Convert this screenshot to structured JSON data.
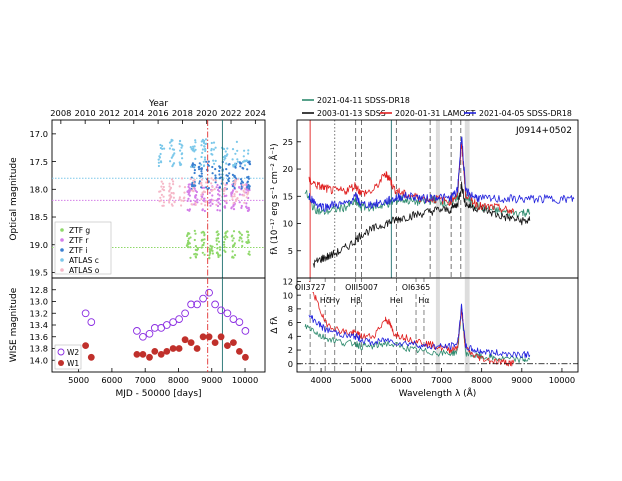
{
  "chart_data": [
    {
      "panel": "left-top",
      "type": "scatter",
      "top_axis_label": "Year",
      "top_ticks": [
        "2008",
        "2010",
        "2012",
        "2014",
        "2016",
        "2018",
        "2020",
        "2022",
        "2024"
      ],
      "top_tick_values": [
        2008,
        2010,
        2012,
        2014,
        2016,
        2018,
        2020,
        2022,
        2024
      ],
      "xlabel": "",
      "ylabel": "Optical magnitude",
      "xlim": [
        4200,
        10600
      ],
      "ylim": [
        19.6,
        16.75
      ],
      "y_inverted": true,
      "yticks": [
        "17.0",
        "17.5",
        "18.0",
        "18.5",
        "19.0",
        "19.5"
      ],
      "ytick_values": [
        17.0,
        17.5,
        18.0,
        18.5,
        19.0,
        19.5
      ],
      "legend": [
        "ZTF g",
        "ZTF r",
        "ZTF i",
        "ATLAS c",
        "ATLAS o"
      ],
      "legend_placement": "lower-left",
      "series": [
        {
          "name": "ZTF g",
          "color": "#8fd86a",
          "x_range": [
            8250,
            10250
          ],
          "mean_mag": 19.0,
          "reference_mag": 19.05
        },
        {
          "name": "ZTF r",
          "color": "#d47ee8",
          "x_range": [
            8250,
            10250
          ],
          "mean_mag": 18.15,
          "reference_mag": 18.2
        },
        {
          "name": "ZTF i",
          "color": "#3a7fd0",
          "x_range": [
            8400,
            10250
          ],
          "mean_mag": 17.75
        },
        {
          "name": "ATLAS c",
          "color": "#7cc8ea",
          "x_range": [
            7400,
            10250
          ],
          "mean_mag": 17.35,
          "reference_mag": 17.8
        },
        {
          "name": "ATLAS o",
          "color": "#f5b8c8",
          "x_range": [
            7400,
            10250
          ],
          "mean_mag": 18.05
        }
      ],
      "vertical_lines": [
        {
          "x": 8878,
          "color": "#e03030",
          "style": "dash-dot"
        },
        {
          "x": 9320,
          "color": "#1f6f6f",
          "style": "solid"
        }
      ]
    },
    {
      "panel": "left-bottom",
      "type": "scatter",
      "xlabel": "MJD - 50000 [days]",
      "ylabel": "WISE magnitude",
      "xlim": [
        4200,
        10600
      ],
      "ylim": [
        14.2,
        12.6
      ],
      "y_inverted": true,
      "xticks": [
        "5000",
        "6000",
        "7000",
        "8000",
        "9000",
        "10000"
      ],
      "xtick_values": [
        5000,
        6000,
        7000,
        8000,
        9000,
        10000
      ],
      "yticks": [
        "12.8",
        "13.0",
        "13.2",
        "13.4",
        "13.6",
        "13.8",
        "14.0"
      ],
      "ytick_values": [
        12.8,
        13.0,
        13.2,
        13.4,
        13.6,
        13.8,
        14.0
      ],
      "legend": [
        "W2",
        "W1"
      ],
      "legend_placement": "lower-left",
      "series": [
        {
          "name": "W2",
          "color": "#8a2be2",
          "marker": "open-circle",
          "x": [
            5210,
            5380,
            6750,
            6930,
            7130,
            7290,
            7480,
            7650,
            7840,
            8020,
            8200,
            8380,
            8560,
            8740,
            8920,
            9100,
            9280,
            9470,
            9650,
            9830,
            10010
          ],
          "y": [
            13.2,
            13.35,
            13.5,
            13.6,
            13.55,
            13.45,
            13.45,
            13.4,
            13.35,
            13.3,
            13.2,
            13.05,
            13.05,
            12.95,
            12.85,
            13.05,
            13.15,
            13.2,
            13.3,
            13.35,
            13.5
          ]
        },
        {
          "name": "W1",
          "color": "#c0302b",
          "marker": "filled-circle",
          "x": [
            5210,
            5380,
            6750,
            6930,
            7130,
            7290,
            7480,
            7650,
            7840,
            8020,
            8200,
            8380,
            8560,
            8740,
            8920,
            9100,
            9280,
            9470,
            9650,
            9830,
            10010
          ],
          "y": [
            13.75,
            13.95,
            13.9,
            13.9,
            13.95,
            13.85,
            13.9,
            13.85,
            13.8,
            13.8,
            13.65,
            13.7,
            13.8,
            13.6,
            13.6,
            13.7,
            13.6,
            13.75,
            13.7,
            13.85,
            13.95
          ]
        }
      ],
      "vertical_lines": [
        {
          "x": 8878,
          "color": "#e03030",
          "style": "dash-dot"
        },
        {
          "x": 9320,
          "color": "#1f6f6f",
          "style": "solid"
        }
      ]
    },
    {
      "panel": "right-top",
      "type": "line",
      "annotation": "J0914+0502",
      "xlabel": "",
      "ylabel": "fλ (10⁻¹⁷ erg s⁻¹ cm⁻² Å⁻¹)",
      "xlim": [
        3400,
        10400
      ],
      "ylim": [
        0,
        29
      ],
      "yticks": [
        "5",
        "10",
        "15",
        "20",
        "25"
      ],
      "ytick_values": [
        5,
        10,
        15,
        20,
        25
      ],
      "legend": [
        "2021-04-11 SDSS-DR18",
        "2003-01-13 SDSS",
        "2020-01-31 LAMOST",
        "2021-04-05 SDSS-DR18"
      ],
      "legend_placement": "top",
      "series": [
        {
          "name": "2021-04-11 SDSS-DR18",
          "color": "#2e8b6e",
          "x": [
            3600,
            3800,
            4000,
            4300,
            4600,
            4860,
            5000,
            5300,
            5600,
            5800,
            6000,
            6300,
            6600,
            6800,
            7000,
            7200,
            7400,
            7500,
            7600,
            7800,
            8000,
            8300,
            8600,
            9000,
            9200
          ],
          "y": [
            16,
            13,
            12,
            12.5,
            13,
            14,
            13,
            13,
            13.5,
            14,
            14.5,
            14,
            14,
            14.5,
            14,
            13.5,
            15,
            25.5,
            15,
            13.5,
            13,
            12.5,
            12,
            12,
            12
          ]
        },
        {
          "name": "2003-01-13 SDSS",
          "color": "#111111",
          "x": [
            3800,
            4000,
            4200,
            4500,
            4800,
            5000,
            5300,
            5600,
            5800,
            6000,
            6300,
            6600,
            6900,
            7200,
            7400,
            7500,
            7600,
            7800,
            8100,
            8400,
            8700,
            9000,
            9200
          ],
          "y": [
            2.5,
            3.5,
            4,
            5,
            6.5,
            8,
            9,
            10,
            10.5,
            11,
            11.5,
            12,
            12.5,
            12.5,
            13.5,
            17,
            13.5,
            13,
            12.5,
            11.5,
            11,
            10.5,
            10.5
          ]
        },
        {
          "name": "2020-01-31 LAMOST",
          "color": "#e02020",
          "x": [
            3700,
            3900,
            4100,
            4300,
            4600,
            4860,
            5000,
            5300,
            5600,
            5700,
            5800,
            6000,
            6300,
            6600,
            6900,
            7200,
            7400,
            7500,
            7600,
            7800,
            8000,
            8300,
            8600,
            8800
          ],
          "y": [
            18,
            17,
            16.5,
            16,
            16,
            17,
            15.5,
            16,
            19,
            18.5,
            16.5,
            15.5,
            15,
            14.5,
            14.5,
            14,
            15.5,
            25,
            15.5,
            14,
            13,
            13,
            12.5,
            12
          ]
        },
        {
          "name": "2021-04-05 SDSS-DR18",
          "color": "#2222dd",
          "x": [
            3700,
            3900,
            4100,
            4300,
            4600,
            4860,
            5000,
            5300,
            5600,
            5800,
            6000,
            6300,
            6600,
            6900,
            7200,
            7400,
            7500,
            7600,
            7800,
            8000,
            8400,
            8800,
            9200,
            9600,
            10000,
            10300
          ],
          "y": [
            15,
            13.5,
            13,
            13.5,
            13.5,
            15,
            13.5,
            13.5,
            14,
            14.5,
            15,
            15,
            14.5,
            15,
            14.5,
            16,
            26.5,
            16,
            15,
            14.5,
            14.5,
            14.5,
            14.5,
            14.5,
            14.5,
            14.5
          ]
        }
      ],
      "vertical_lines": [
        {
          "x": 3727,
          "color": "#e02020",
          "style": "solid"
        },
        {
          "x": 4340,
          "color": "#666666",
          "style": "dotted"
        },
        {
          "x": 4861,
          "color": "#666666",
          "style": "dashed"
        },
        {
          "x": 5007,
          "color": "#666666",
          "style": "dashed"
        },
        {
          "x": 5876,
          "color": "#666666",
          "style": "dashed"
        },
        {
          "x": 5750,
          "color": "#1f6f6f",
          "style": "solid"
        },
        {
          "x": 6717,
          "color": "#666666",
          "style": "dashed"
        },
        {
          "x": 7240,
          "color": "#666666",
          "style": "dashed"
        },
        {
          "x": 7480,
          "color": "#666666",
          "style": "dashed"
        }
      ],
      "shaded_bands": [
        [
          6860,
          6960
        ],
        [
          7580,
          7700
        ]
      ]
    },
    {
      "panel": "right-bottom",
      "type": "line",
      "xlabel": "Wavelength λ (Å)",
      "ylabel": "Δ fλ",
      "xlim": [
        3400,
        10400
      ],
      "ylim": [
        -1.2,
        12.5
      ],
      "xticks": [
        "4000",
        "5000",
        "6000",
        "7000",
        "8000",
        "9000",
        "10000"
      ],
      "xtick_values": [
        4000,
        5000,
        6000,
        7000,
        8000,
        9000,
        10000
      ],
      "yticks": [
        "0",
        "2",
        "4",
        "6",
        "8",
        "10",
        "12"
      ],
      "ytick_values": [
        0,
        2,
        4,
        6,
        8,
        10,
        12
      ],
      "line_labels": [
        {
          "text": "OII3727",
          "x": 3727,
          "row": "top"
        },
        {
          "text": "Hδ",
          "x": 4102,
          "row": "bottom"
        },
        {
          "text": "Hγ",
          "x": 4340,
          "row": "bottom"
        },
        {
          "text": "OIII5007",
          "x": 5007,
          "row": "top"
        },
        {
          "text": "Hβ",
          "x": 4861,
          "row": "bottom"
        },
        {
          "text": "HeI",
          "x": 5876,
          "row": "bottom"
        },
        {
          "text": "OI6365",
          "x": 6365,
          "row": "top"
        },
        {
          "text": "Hα",
          "x": 6563,
          "row": "bottom"
        }
      ],
      "series": [
        {
          "name": "2021-04-11 SDSS-DR18",
          "color": "#2e8b6e",
          "x": [
            3600,
            3800,
            4000,
            4300,
            4600,
            4860,
            5000,
            5300,
            5600,
            6000,
            6300,
            6600,
            6900,
            7200,
            7400,
            7500,
            7600,
            7800,
            8000,
            8300,
            8600,
            9000,
            9200
          ],
          "y": [
            5.5,
            5,
            4,
            3.5,
            3,
            3,
            2.5,
            2.5,
            3,
            2.5,
            2,
            1.8,
            1.6,
            1.5,
            1.8,
            8,
            1.6,
            1.2,
            1,
            0.8,
            0.7,
            0.6,
            0.6
          ]
        },
        {
          "name": "2020-01-31 LAMOST",
          "color": "#e02020",
          "x": [
            3700,
            3900,
            4100,
            4400,
            4700,
            4860,
            5000,
            5300,
            5600,
            5700,
            5800,
            6000,
            6300,
            6600,
            6900,
            7200,
            7400,
            7500,
            7600,
            7800,
            8000,
            8300,
            8600,
            8800
          ],
          "y": [
            12,
            9,
            6,
            5,
            4.5,
            4.5,
            4,
            4,
            6.5,
            6,
            4.5,
            4,
            3.5,
            3,
            2.5,
            2,
            2.5,
            8,
            2.2,
            1.2,
            0.8,
            0.4,
            0.2,
            0.1
          ]
        },
        {
          "name": "2021-04-05 SDSS-DR18",
          "color": "#2222dd",
          "x": [
            3700,
            3900,
            4100,
            4400,
            4700,
            4860,
            5000,
            5300,
            5600,
            6000,
            6300,
            6600,
            6900,
            7200,
            7400,
            7500,
            7600,
            7800,
            8000,
            8300,
            8600,
            9000,
            9200
          ],
          "y": [
            7,
            6,
            5,
            4.5,
            4,
            4,
            3.5,
            3,
            3.5,
            3,
            3,
            2.5,
            2.5,
            2.5,
            3,
            8.5,
            2.5,
            2,
            1.8,
            1.6,
            1.5,
            1.4,
            1.3
          ]
        }
      ],
      "zero_line": {
        "y": 0,
        "style": "dash-dot",
        "color": "#000000"
      },
      "shaded_bands": [
        [
          6860,
          6960
        ],
        [
          7580,
          7700
        ]
      ]
    }
  ]
}
